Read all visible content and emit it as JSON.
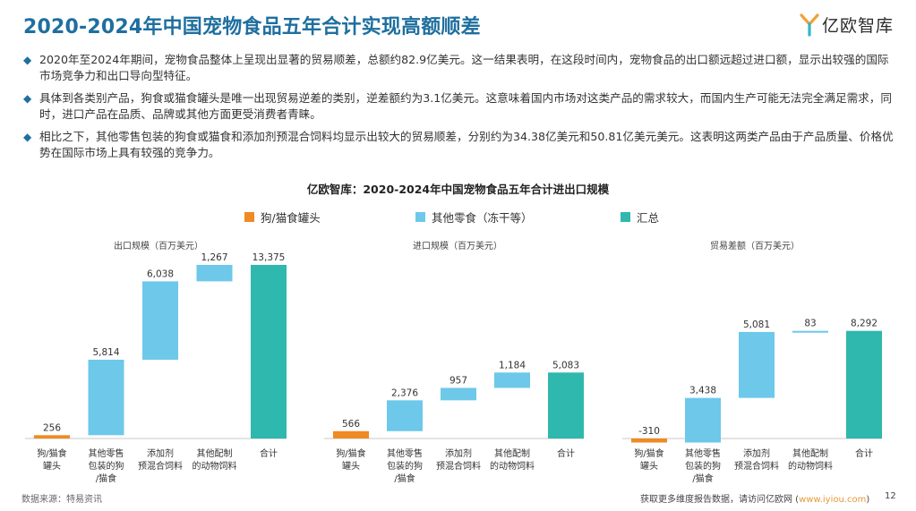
{
  "page": {
    "title": "2020-2024年中国宠物食品五年合计实现高额顺差",
    "logo_text": "亿欧智库",
    "bullets": [
      "2020年至2024年期间，宠物食品整体上呈现出显著的贸易顺差，总额约82.9亿美元。这一结果表明，在这段时间内，宠物食品的出口额远超过进口额，显示出较强的国际市场竞争力和出口导向型特征。",
      "具体到各类别产品，狗食或猫食罐头是唯一出现贸易逆差的类别，逆差额约为3.1亿美元。这意味着国内市场对这类产品的需求较大，而国内生产可能无法完全满足需求，同时，进口产品在品质、品牌或其他方面更受消费者青睐。",
      "相比之下，其他零售包装的狗食或猫食和添加剂预混合饲料均显示出较大的贸易顺差，分别约为34.38亿美元和50.81亿美元美元。这表明这两类产品由于产品质量、价格优势在国际市场上具有较强的竞争力。"
    ],
    "bullet_marker": "◆",
    "chart_title": "亿欧智库：2020-2024年中国宠物食品五年合计进出口规模",
    "source": "数据来源：特易资讯",
    "footer_text": "获取更多维度报告数据，请访问亿欧网 (",
    "footer_link": "www.iyiou.com",
    "footer_close": ")",
    "page_number": "12"
  },
  "colors": {
    "title": "#1e6f9f",
    "orange": "#f08a24",
    "lightblue": "#6dc8ea",
    "teal": "#2fb8ad",
    "axis": "#c8c8c8"
  },
  "legend": [
    {
      "label": "狗/猫食罐头",
      "color": "#f08a24"
    },
    {
      "label": "其他零食（冻干等）",
      "color": "#6dc8ea"
    },
    {
      "label": "汇总",
      "color": "#2fb8ad"
    }
  ],
  "chart_data": [
    {
      "type": "waterfall",
      "subtitle": "出口规模（百万美元）",
      "categories": [
        "狗/猫食罐头",
        "其他零售包装的狗/猫食",
        "添加剂预混合饲料",
        "其他配制的动物饲料",
        "合计"
      ],
      "category_lines": [
        [
          "狗/猫食",
          "罐头"
        ],
        [
          "其他零售",
          "包装的狗",
          "/猫食"
        ],
        [
          "添加剂",
          "预混合饲料"
        ],
        [
          "其他配制",
          "的动物饲料"
        ],
        [
          "合计"
        ]
      ],
      "values": [
        256,
        5814,
        6038,
        1267,
        13375
      ],
      "labels": [
        "256",
        "5,814",
        "6,038",
        "1,267",
        "13,375"
      ],
      "ylim": [
        0,
        13375
      ]
    },
    {
      "type": "waterfall",
      "subtitle": "进口规模（百万美元）",
      "categories": [
        "狗/猫食罐头",
        "其他零售包装的狗/猫食",
        "添加剂预混合饲料",
        "其他配制的动物饲料",
        "合计"
      ],
      "category_lines": [
        [
          "狗/猫食",
          "罐头"
        ],
        [
          "其他零售",
          "包装的狗",
          "/猫食"
        ],
        [
          "添加剂",
          "预混合饲料"
        ],
        [
          "其他配制",
          "的动物饲料"
        ],
        [
          "合计"
        ]
      ],
      "values": [
        566,
        2376,
        957,
        1184,
        5083
      ],
      "labels": [
        "566",
        "2,376",
        "957",
        "1,184",
        "5,083"
      ],
      "ylim": [
        0,
        13375
      ]
    },
    {
      "type": "waterfall",
      "subtitle": "贸易差额（百万美元）",
      "categories": [
        "狗/猫食罐头",
        "其他零售包装的狗/猫食",
        "添加剂预混合饲料",
        "其他配制的动物饲料",
        "合计"
      ],
      "category_lines": [
        [
          "狗/猫食",
          "罐头"
        ],
        [
          "其他零售",
          "包装的狗",
          "/猫食"
        ],
        [
          "添加剂",
          "预混合饲料"
        ],
        [
          "其他配制",
          "的动物饲料"
        ],
        [
          "合计"
        ]
      ],
      "values": [
        -310,
        3438,
        5081,
        83,
        8292
      ],
      "labels": [
        "-310",
        "3,438",
        "5,081",
        "83",
        "8,292"
      ],
      "ylim": [
        0,
        13375
      ]
    }
  ]
}
